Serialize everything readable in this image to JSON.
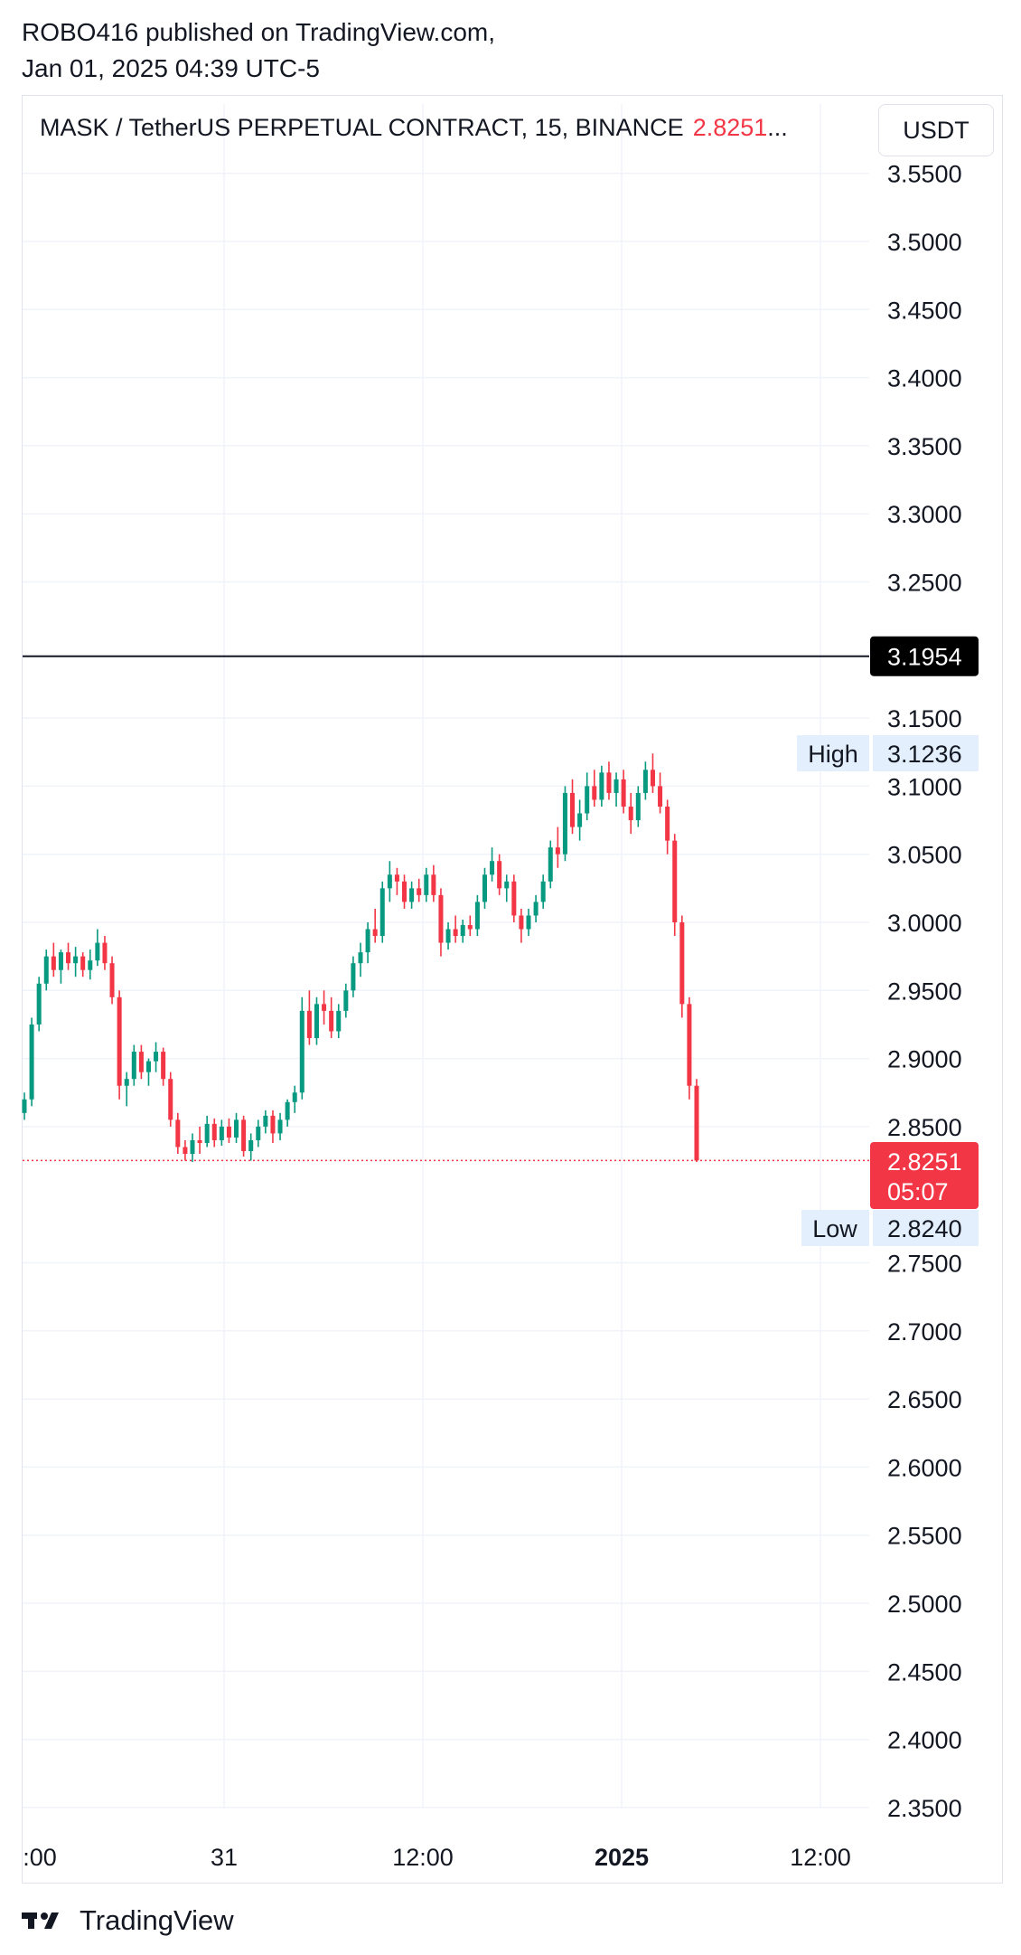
{
  "publisher": {
    "line1": "ROBO416 published on TradingView.com,",
    "line2": "Jan 01, 2025 04:39 UTC-5"
  },
  "legend": {
    "title": "MASK / TetherUS PERPETUAL CONTRACT, 15, BINANCE",
    "last": "2.8251",
    "ellipsis": "..."
  },
  "currency_button": "USDT",
  "footer": {
    "brand": "TradingView"
  },
  "colors": {
    "up": "#089981",
    "down": "#f23645",
    "grid": "#f0f3fa",
    "badge_bg": "#e3effd"
  },
  "chart_data": {
    "type": "candlestick",
    "title": "MASK / TetherUS PERPETUAL CONTRACT, 15, BINANCE",
    "ylim": [
      2.33,
      3.56
    ],
    "y_ticks": [
      "3.5500",
      "3.5000",
      "3.4500",
      "3.4000",
      "3.3500",
      "3.3000",
      "3.2500",
      "3.1500",
      "3.1000",
      "3.0500",
      "3.0000",
      "2.9500",
      "2.9000",
      "2.8500",
      "2.7500",
      "2.7000",
      "2.6500",
      "2.6000",
      "2.5500",
      "2.5000",
      "2.4500",
      "2.4000",
      "2.3500"
    ],
    "x_ticks": [
      {
        "label": ":00",
        "bold": false
      },
      {
        "label": "31",
        "bold": false
      },
      {
        "label": "12:00",
        "bold": false
      },
      {
        "label": "2025",
        "bold": true
      },
      {
        "label": "12:00",
        "bold": false
      }
    ],
    "horizontal_line": {
      "value": 3.1954,
      "label": "3.1954"
    },
    "high": {
      "label": "High",
      "value": "3.1236"
    },
    "low": {
      "label": "Low",
      "value": "2.8240"
    },
    "last_price": {
      "value": 2.8251,
      "label": "2.8251",
      "countdown": "05:07"
    },
    "candles": [
      [
        2.86,
        2.875,
        2.855,
        2.87
      ],
      [
        2.87,
        2.93,
        2.865,
        2.925
      ],
      [
        2.925,
        2.96,
        2.92,
        2.955
      ],
      [
        2.955,
        2.98,
        2.95,
        2.975
      ],
      [
        2.975,
        2.985,
        2.96,
        2.965
      ],
      [
        2.965,
        2.98,
        2.955,
        2.978
      ],
      [
        2.978,
        2.985,
        2.965,
        2.97
      ],
      [
        2.97,
        2.982,
        2.96,
        2.975
      ],
      [
        2.975,
        2.978,
        2.96,
        2.965
      ],
      [
        2.965,
        2.98,
        2.958,
        2.972
      ],
      [
        2.972,
        2.995,
        2.968,
        2.985
      ],
      [
        2.985,
        2.99,
        2.965,
        2.97
      ],
      [
        2.97,
        2.975,
        2.94,
        2.945
      ],
      [
        2.945,
        2.95,
        2.87,
        2.88
      ],
      [
        2.88,
        2.89,
        2.865,
        2.885
      ],
      [
        2.885,
        2.91,
        2.88,
        2.905
      ],
      [
        2.905,
        2.91,
        2.885,
        2.89
      ],
      [
        2.89,
        2.9,
        2.88,
        2.898
      ],
      [
        2.898,
        2.912,
        2.89,
        2.905
      ],
      [
        2.905,
        2.908,
        2.88,
        2.885
      ],
      [
        2.885,
        2.89,
        2.85,
        2.855
      ],
      [
        2.855,
        2.86,
        2.83,
        2.835
      ],
      [
        2.835,
        2.84,
        2.825,
        2.83
      ],
      [
        2.83,
        2.845,
        2.824,
        2.84
      ],
      [
        2.84,
        2.85,
        2.83,
        2.838
      ],
      [
        2.838,
        2.858,
        2.835,
        2.852
      ],
      [
        2.852,
        2.856,
        2.835,
        2.84
      ],
      [
        2.84,
        2.855,
        2.836,
        2.85
      ],
      [
        2.85,
        2.856,
        2.838,
        2.842
      ],
      [
        2.842,
        2.86,
        2.838,
        2.855
      ],
      [
        2.855,
        2.858,
        2.828,
        2.832
      ],
      [
        2.832,
        2.845,
        2.825,
        2.84
      ],
      [
        2.84,
        2.855,
        2.835,
        2.85
      ],
      [
        2.85,
        2.862,
        2.845,
        2.858
      ],
      [
        2.858,
        2.862,
        2.838,
        2.845
      ],
      [
        2.845,
        2.86,
        2.84,
        2.855
      ],
      [
        2.855,
        2.87,
        2.85,
        2.868
      ],
      [
        2.868,
        2.88,
        2.86,
        2.875
      ],
      [
        2.875,
        2.945,
        2.87,
        2.935
      ],
      [
        2.935,
        2.95,
        2.91,
        2.915
      ],
      [
        2.915,
        2.945,
        2.91,
        2.94
      ],
      [
        2.94,
        2.95,
        2.925,
        2.935
      ],
      [
        2.935,
        2.945,
        2.915,
        2.92
      ],
      [
        2.92,
        2.94,
        2.915,
        2.935
      ],
      [
        2.935,
        2.955,
        2.93,
        2.95
      ],
      [
        2.95,
        2.975,
        2.945,
        2.97
      ],
      [
        2.97,
        2.985,
        2.96,
        2.978
      ],
      [
        2.978,
        3.0,
        2.97,
        2.995
      ],
      [
        2.995,
        3.01,
        2.985,
        2.99
      ],
      [
        2.99,
        3.03,
        2.985,
        3.025
      ],
      [
        3.025,
        3.045,
        3.015,
        3.035
      ],
      [
        3.035,
        3.04,
        3.02,
        3.03
      ],
      [
        3.03,
        3.035,
        3.01,
        3.015
      ],
      [
        3.015,
        3.03,
        3.01,
        3.025
      ],
      [
        3.025,
        3.032,
        3.015,
        3.02
      ],
      [
        3.02,
        3.04,
        3.015,
        3.035
      ],
      [
        3.035,
        3.042,
        3.015,
        3.02
      ],
      [
        3.02,
        3.025,
        2.975,
        2.985
      ],
      [
        2.985,
        3.0,
        2.98,
        2.995
      ],
      [
        2.995,
        3.005,
        2.985,
        2.99
      ],
      [
        2.99,
        3.002,
        2.985,
        2.998
      ],
      [
        2.998,
        3.005,
        2.99,
        2.995
      ],
      [
        2.995,
        3.02,
        2.99,
        3.015
      ],
      [
        3.015,
        3.04,
        3.01,
        3.035
      ],
      [
        3.035,
        3.055,
        3.03,
        3.045
      ],
      [
        3.045,
        3.05,
        3.02,
        3.025
      ],
      [
        3.025,
        3.035,
        3.015,
        3.03
      ],
      [
        3.03,
        3.035,
        3.0,
        3.005
      ],
      [
        3.005,
        3.01,
        2.985,
        2.995
      ],
      [
        2.995,
        3.01,
        2.99,
        3.005
      ],
      [
        3.005,
        3.02,
        3.0,
        3.015
      ],
      [
        3.015,
        3.035,
        3.01,
        3.03
      ],
      [
        3.03,
        3.06,
        3.025,
        3.055
      ],
      [
        3.055,
        3.07,
        3.04,
        3.05
      ],
      [
        3.05,
        3.1,
        3.045,
        3.095
      ],
      [
        3.095,
        3.105,
        3.065,
        3.07
      ],
      [
        3.07,
        3.09,
        3.06,
        3.08
      ],
      [
        3.08,
        3.11,
        3.075,
        3.1
      ],
      [
        3.1,
        3.112,
        3.085,
        3.09
      ],
      [
        3.09,
        3.115,
        3.085,
        3.11
      ],
      [
        3.11,
        3.118,
        3.09,
        3.095
      ],
      [
        3.095,
        3.11,
        3.085,
        3.105
      ],
      [
        3.105,
        3.112,
        3.08,
        3.085
      ],
      [
        3.085,
        3.095,
        3.065,
        3.075
      ],
      [
        3.075,
        3.1,
        3.07,
        3.095
      ],
      [
        3.095,
        3.118,
        3.09,
        3.112
      ],
      [
        3.112,
        3.124,
        3.095,
        3.1
      ],
      [
        3.1,
        3.11,
        3.08,
        3.085
      ],
      [
        3.085,
        3.09,
        3.05,
        3.06
      ],
      [
        3.06,
        3.065,
        2.99,
        3.0
      ],
      [
        3.0,
        3.005,
        2.93,
        2.94
      ],
      [
        2.94,
        2.945,
        2.87,
        2.88
      ],
      [
        2.88,
        2.885,
        2.824,
        2.8251
      ]
    ]
  }
}
